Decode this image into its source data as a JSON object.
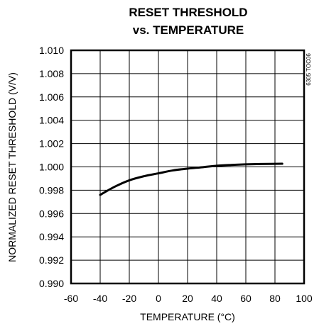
{
  "chart_data": {
    "type": "line",
    "title_lines": [
      "RESET THRESHOLD",
      "vs. TEMPERATURE"
    ],
    "xlabel": "TEMPERATURE (°C)",
    "ylabel": "NORMALIZED RESET THRESHOLD (V/V)",
    "xlim": [
      -60,
      100
    ],
    "ylim": [
      0.99,
      1.01
    ],
    "x_ticks": [
      -60,
      -40,
      -20,
      0,
      20,
      40,
      60,
      80,
      100
    ],
    "x_tick_labels": [
      "-60",
      "-40",
      "-20",
      "0",
      "20",
      "40",
      "60",
      "80",
      "100"
    ],
    "y_ticks": [
      0.99,
      0.992,
      0.994,
      0.996,
      0.998,
      1.0,
      1.002,
      1.004,
      1.006,
      1.008,
      1.01
    ],
    "y_tick_labels": [
      "0.990",
      "0.992",
      "0.994",
      "0.996",
      "0.998",
      "1.000",
      "1.002",
      "1.004",
      "1.006",
      "1.008",
      "1.010"
    ],
    "grid": true,
    "figure_code": "6305 TOC06",
    "series": [
      {
        "x": [
          -40,
          -30,
          -20,
          -10,
          0,
          10,
          20,
          30,
          40,
          50,
          60,
          70,
          85
        ],
        "y": [
          0.9976,
          0.9983,
          0.99885,
          0.9992,
          0.99945,
          0.9997,
          0.99985,
          0.99997,
          1.0001,
          1.00017,
          1.00022,
          1.00025,
          1.00027
        ]
      }
    ],
    "colors": {
      "line": "#000000",
      "grid": "#000000",
      "frame": "#000000"
    }
  }
}
